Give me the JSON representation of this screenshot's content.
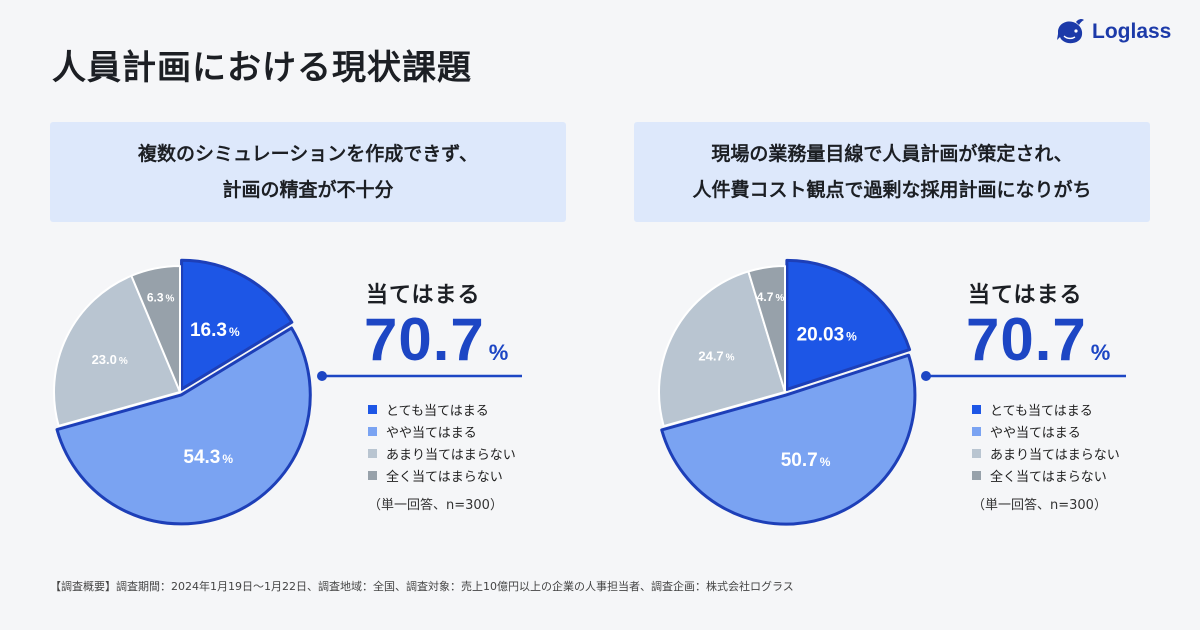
{
  "title": "人員計画における現状課題",
  "logo": {
    "text": "Loglass"
  },
  "footer": "【調査概要】調査期間：2024年1月19日〜1月22日、調査地域：全国、調査対象：売上10億円以上の企業の人事担当者、調査企画：株式会社ログラス",
  "colors": {
    "strong": "#1d56e6",
    "medium": "#7aa3f2",
    "light": "#b9c5d1",
    "dark": "#97a1aa",
    "accent": "#1d46c4"
  },
  "chart_data": [
    {
      "type": "pie",
      "title": "複数のシミュレーションを作成できず、計画の精査が不十分",
      "title_lines": [
        "複数のシミュレーションを作成できず、",
        "計画の精査が不十分"
      ],
      "summary_label": "当てはまる",
      "summary_value": "70.7",
      "summary_unit": "%",
      "categories": [
        "とても当てはまる",
        "やや当てはまる",
        "あまり当てはまらない",
        "全く当てはまらない"
      ],
      "values": [
        16.3,
        54.3,
        23.0,
        6.3
      ],
      "value_labels": [
        "16.3",
        "54.3",
        "23.0",
        "6.3"
      ],
      "unit": "%",
      "note": "（単一回答、n=300）"
    },
    {
      "type": "pie",
      "title": "現場の業務量目線で人員計画が策定され、人件費コスト観点で過剰な採用計画になりがち",
      "title_lines": [
        "現場の業務量目線で人員計画が策定され、",
        "人件費コスト観点で過剰な採用計画になりがち"
      ],
      "summary_label": "当てはまる",
      "summary_value": "70.7",
      "summary_unit": "%",
      "categories": [
        "とても当てはまる",
        "やや当てはまる",
        "あまり当てはまらない",
        "全く当てはまらない"
      ],
      "values": [
        20.03,
        50.7,
        24.7,
        4.7
      ],
      "value_labels": [
        "20.03",
        "50.7",
        "24.7",
        "4.7"
      ],
      "unit": "%",
      "note": "（単一回答、n=300）"
    }
  ]
}
